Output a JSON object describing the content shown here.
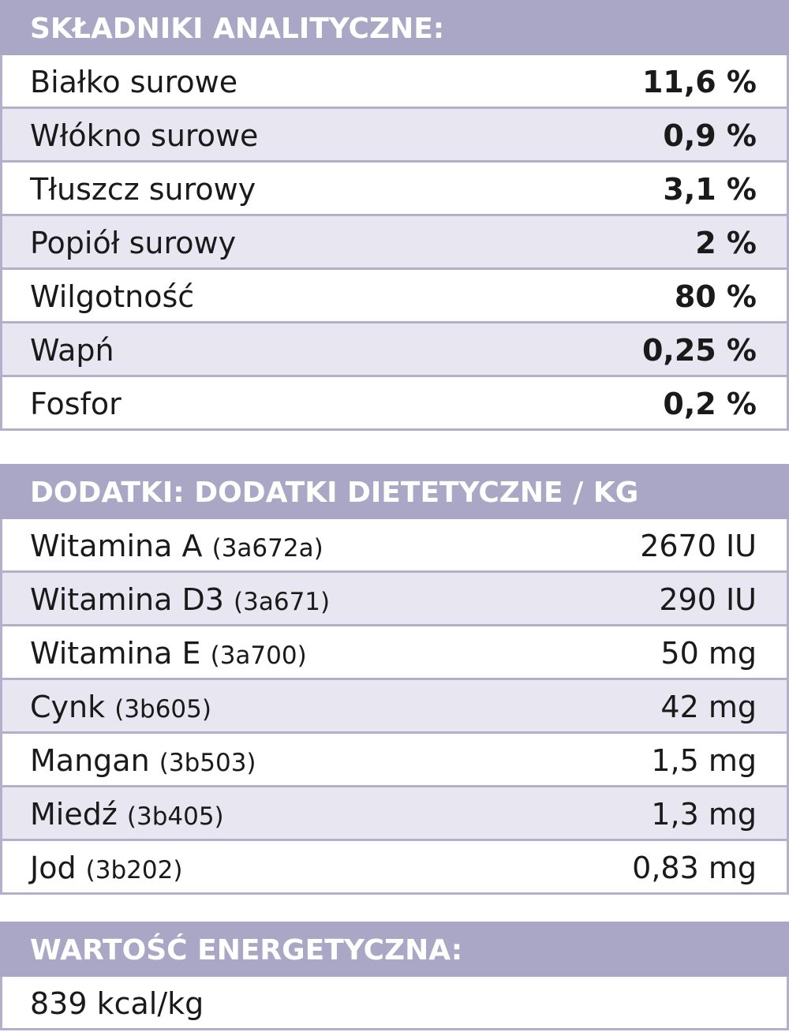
{
  "sections": [
    {
      "title": "SKŁADNIKI ANALITYCZNE:",
      "rows": [
        {
          "label": "Białko surowe",
          "value": "11,6 %"
        },
        {
          "label": "Włókno surowe",
          "value": "0,9 %"
        },
        {
          "label": "Tłuszcz surowy",
          "value": "3,1 %"
        },
        {
          "label": "Popiół surowy",
          "value": "2 %"
        },
        {
          "label": "Wilgotność",
          "value": "80 %"
        },
        {
          "label": "Wapń",
          "value": "0,25 %"
        },
        {
          "label": "Fosfor",
          "value": "0,2 %"
        }
      ]
    },
    {
      "title": "DODATKI: DODATKI DIETETYCZNE / KG",
      "rows": [
        {
          "label": "Witamina A",
          "code": "(3a672a)",
          "value": "2670 IU"
        },
        {
          "label": "Witamina D3",
          "code": "(3a671)",
          "value": "290 IU"
        },
        {
          "label": "Witamina E",
          "code": "(3a700)",
          "value": "50 mg"
        },
        {
          "label": "Cynk",
          "code": "(3b605)",
          "value": "42 mg"
        },
        {
          "label": "Mangan",
          "code": "(3b503)",
          "value": "1,5 mg"
        },
        {
          "label": "Miedź",
          "code": "(3b405)",
          "value": "1,3 mg"
        },
        {
          "label": "Jod",
          "code": "(3b202)",
          "value": "0,83 mg"
        }
      ]
    },
    {
      "title": "WARTOŚĆ ENERGETYCZNA:",
      "rows": [
        {
          "label": "839 kcal/kg"
        }
      ]
    }
  ]
}
